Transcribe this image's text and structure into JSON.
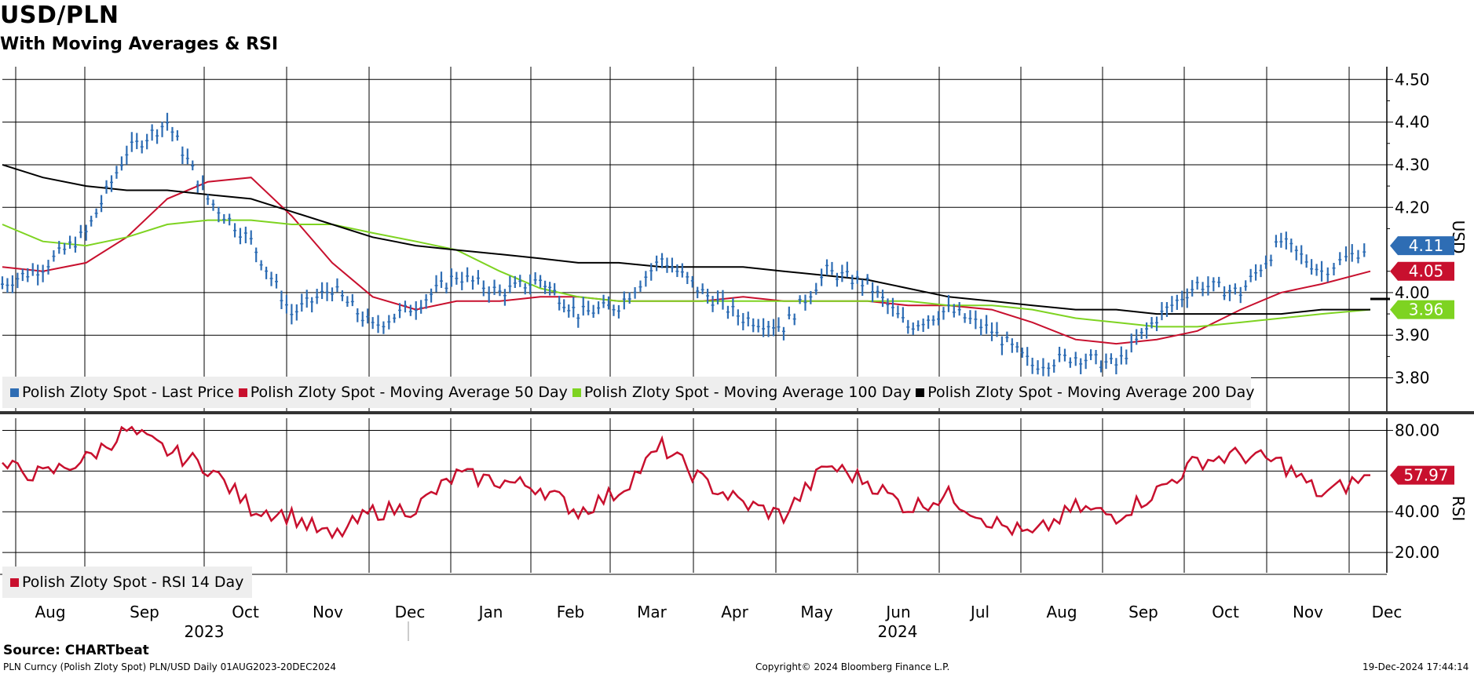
{
  "title": "USD/PLN",
  "subtitle": "With Moving Averages & RSI",
  "source": "Source: CHARTbeat",
  "footer": {
    "left": "PLN Curncy (Polish Zloty Spot) PLN/USD  Daily 01AUG2023-20DEC2024",
    "center": "Copyright© 2024 Bloomberg Finance L.P.",
    "right": "19-Dec-2024 17:44:14"
  },
  "colors": {
    "price": "#2e6db4",
    "ma50": "#c8102e",
    "ma100": "#7ed321",
    "ma200": "#000000",
    "rsi": "#c8102e",
    "grid": "#000000",
    "legend_bg": "#eeeeee"
  },
  "chart_data": [
    {
      "type": "line",
      "panel": "price",
      "axis_label": "USD",
      "ylim": [
        3.72,
        4.53
      ],
      "y_ticks": [
        "4.50",
        "4.40",
        "4.30",
        "4.20",
        "4.00",
        "3.90",
        "3.80"
      ],
      "x_months": [
        "Aug",
        "Sep",
        "Oct",
        "Nov",
        "Dec",
        "Jan",
        "Feb",
        "Mar",
        "Apr",
        "May",
        "Jun",
        "Jul",
        "Aug",
        "Sep",
        "Oct",
        "Nov",
        "Dec"
      ],
      "x_years": [
        "2023",
        "2024"
      ],
      "x": [
        "2023-08-01",
        "2023-08-16",
        "2023-09-01",
        "2023-09-16",
        "2023-10-01",
        "2023-10-16",
        "2023-11-01",
        "2023-11-16",
        "2023-12-01",
        "2023-12-16",
        "2024-01-01",
        "2024-01-16",
        "2024-02-01",
        "2024-02-16",
        "2024-03-01",
        "2024-03-16",
        "2024-04-01",
        "2024-04-16",
        "2024-05-01",
        "2024-05-16",
        "2024-06-01",
        "2024-06-16",
        "2024-07-01",
        "2024-07-16",
        "2024-08-01",
        "2024-08-16",
        "2024-09-01",
        "2024-09-16",
        "2024-10-01",
        "2024-10-16",
        "2024-11-01",
        "2024-11-16",
        "2024-12-01",
        "2024-12-19"
      ],
      "series": [
        {
          "name": "Polish Zloty Spot - Last Price",
          "values": [
            4.02,
            4.06,
            4.14,
            4.33,
            4.4,
            4.22,
            4.12,
            3.95,
            4.01,
            3.92,
            3.97,
            4.04,
            4.0,
            4.03,
            3.95,
            3.97,
            4.08,
            4.0,
            3.94,
            3.92,
            4.05,
            4.02,
            3.92,
            3.96,
            3.91,
            3.83,
            3.85,
            3.83,
            3.94,
            4.02,
            4.0,
            4.12,
            4.05,
            4.11
          ]
        },
        {
          "name": "Polish Zloty Spot - Moving Average 50 Day",
          "values": [
            4.06,
            4.05,
            4.07,
            4.13,
            4.22,
            4.26,
            4.27,
            4.18,
            4.07,
            3.99,
            3.96,
            3.98,
            3.98,
            3.99,
            3.99,
            3.98,
            3.98,
            3.98,
            3.99,
            3.98,
            3.98,
            3.98,
            3.97,
            3.97,
            3.96,
            3.93,
            3.89,
            3.88,
            3.89,
            3.91,
            3.96,
            4.0,
            4.02,
            4.05
          ]
        },
        {
          "name": "Polish Zloty Spot - Moving Average 100 Day",
          "values": [
            4.16,
            4.12,
            4.11,
            4.13,
            4.16,
            4.17,
            4.17,
            4.16,
            4.16,
            4.14,
            4.12,
            4.1,
            4.05,
            4.01,
            3.99,
            3.98,
            3.98,
            3.98,
            3.98,
            3.98,
            3.98,
            3.98,
            3.98,
            3.97,
            3.97,
            3.96,
            3.94,
            3.93,
            3.92,
            3.92,
            3.93,
            3.94,
            3.95,
            3.96
          ]
        },
        {
          "name": "Polish Zloty Spot - Moving Average 200 Day",
          "values": [
            4.3,
            4.27,
            4.25,
            4.24,
            4.24,
            4.23,
            4.22,
            4.19,
            4.16,
            4.13,
            4.11,
            4.1,
            4.09,
            4.08,
            4.07,
            4.07,
            4.06,
            4.06,
            4.06,
            4.05,
            4.04,
            4.03,
            4.01,
            3.99,
            3.98,
            3.97,
            3.96,
            3.96,
            3.95,
            3.95,
            3.95,
            3.95,
            3.96,
            3.96
          ]
        }
      ],
      "labels": [
        {
          "text": "4.11",
          "value": 4.11,
          "color": "#2e6db4"
        },
        {
          "text": "4.05",
          "value": 4.05,
          "color": "#c8102e"
        },
        {
          "text": "3.96",
          "value": 3.96,
          "color": "#7ed321"
        }
      ],
      "legend": [
        "Polish Zloty Spot - Last Price",
        "Polish Zloty Spot - Moving Average 50 Day",
        "Polish Zloty Spot - Moving Average 100 Day",
        "Polish Zloty Spot - Moving Average 200 Day"
      ]
    },
    {
      "type": "line",
      "panel": "rsi",
      "axis_label": "RSI",
      "ylim": [
        10,
        86
      ],
      "y_ticks": [
        "80.00",
        "40.00",
        "20.00"
      ],
      "x": [
        "2023-08-01",
        "2023-08-16",
        "2023-09-01",
        "2023-09-16",
        "2023-10-01",
        "2023-10-16",
        "2023-11-01",
        "2023-11-16",
        "2023-12-01",
        "2023-12-16",
        "2024-01-01",
        "2024-01-16",
        "2024-02-01",
        "2024-02-16",
        "2024-03-01",
        "2024-03-16",
        "2024-04-01",
        "2024-04-16",
        "2024-05-01",
        "2024-05-16",
        "2024-06-01",
        "2024-06-16",
        "2024-07-01",
        "2024-07-16",
        "2024-08-01",
        "2024-08-16",
        "2024-09-01",
        "2024-09-16",
        "2024-10-01",
        "2024-10-16",
        "2024-11-01",
        "2024-11-16",
        "2024-12-01",
        "2024-12-19"
      ],
      "series": [
        {
          "name": "Polish Zloty Spot - RSI 14 Day",
          "values": [
            62,
            58,
            66,
            80,
            70,
            62,
            42,
            38,
            27,
            40,
            42,
            58,
            55,
            52,
            40,
            50,
            72,
            55,
            44,
            38,
            63,
            55,
            42,
            48,
            35,
            28,
            42,
            38,
            50,
            65,
            68,
            64,
            48,
            58
          ]
        }
      ],
      "labels": [
        {
          "text": "57.97",
          "value": 57.97,
          "color": "#c8102e"
        }
      ],
      "legend": [
        "Polish Zloty Spot - RSI 14 Day"
      ]
    }
  ]
}
